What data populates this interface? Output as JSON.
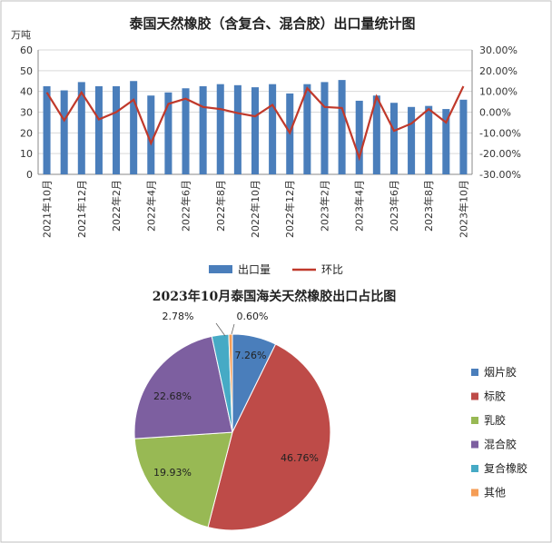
{
  "chart_data": [
    {
      "type": "bar",
      "title": "泰国天然橡胶（含复合、混合胶）出口量统计图",
      "ylabel": "万吨",
      "y2label": "",
      "ylim": [
        0,
        60
      ],
      "y2lim": [
        -30,
        30
      ],
      "yticks": [
        "0",
        "10",
        "20",
        "30",
        "40",
        "50",
        "60"
      ],
      "y2ticks": [
        "-30.00%",
        "-20.00%",
        "-10.00%",
        "0.00%",
        "10.00%",
        "20.00%",
        "30.00%"
      ],
      "xtick_labels": [
        "2021年10月",
        "2021年12月",
        "2022年2月",
        "2022年4月",
        "2022年6月",
        "2022年8月",
        "2022年10月",
        "2022年12月",
        "2023年2月",
        "2023年4月",
        "2023年6月",
        "2023年8月",
        "2023年10月"
      ],
      "categories": [
        "2021年10月",
        "2021年11月",
        "2021年12月",
        "2022年1月",
        "2022年2月",
        "2022年3月",
        "2022年4月",
        "2022年5月",
        "2022年6月",
        "2022年7月",
        "2022年8月",
        "2022年9月",
        "2022年10月",
        "2022年11月",
        "2022年12月",
        "2023年1月",
        "2023年2月",
        "2023年3月",
        "2023年4月",
        "2023年5月",
        "2023年6月",
        "2023年7月",
        "2023年8月",
        "2023年9月",
        "2023年10月"
      ],
      "series": [
        {
          "name": "出口量",
          "type": "bar",
          "axis": "left",
          "color": "#4a7ebb",
          "values": [
            42.5,
            40.5,
            44.5,
            42.5,
            42.5,
            45,
            38,
            39.5,
            41.5,
            42.5,
            43.5,
            43,
            42,
            43.5,
            39,
            43.5,
            44.5,
            45.5,
            35.5,
            38,
            34.5,
            32.5,
            33,
            31.5,
            36
          ]
        },
        {
          "name": "环比",
          "type": "line",
          "axis": "right",
          "color": "#c0392b",
          "values": [
            9.5,
            -4,
            9.5,
            -3.5,
            0,
            6,
            -15,
            4,
            6.5,
            2.5,
            1.5,
            -0.5,
            -2,
            3.5,
            -10,
            11.5,
            2.5,
            2,
            -22,
            7.5,
            -9,
            -5.5,
            1.5,
            -5,
            12.5
          ]
        }
      ],
      "legend_position": "bottom",
      "grid": true
    },
    {
      "type": "pie",
      "title": "2023年10月泰国海关天然橡胶出口占比图",
      "slices": [
        {
          "name": "烟片胶",
          "value": 7.26,
          "label": "7.26%",
          "color": "#4a7ebb"
        },
        {
          "name": "标胶",
          "value": 46.76,
          "label": "46.76%",
          "color": "#be4b48"
        },
        {
          "name": "乳胶",
          "value": 19.93,
          "label": "19.93%",
          "color": "#98b954"
        },
        {
          "name": "混合胶",
          "value": 22.68,
          "label": "22.68%",
          "color": "#7d5fa0"
        },
        {
          "name": "复合橡胶",
          "value": 2.78,
          "label": "2.78%",
          "color": "#46aac5"
        },
        {
          "name": "其他",
          "value": 0.6,
          "label": "0.60%",
          "color": "#f59d56"
        }
      ],
      "legend_position": "right"
    }
  ]
}
